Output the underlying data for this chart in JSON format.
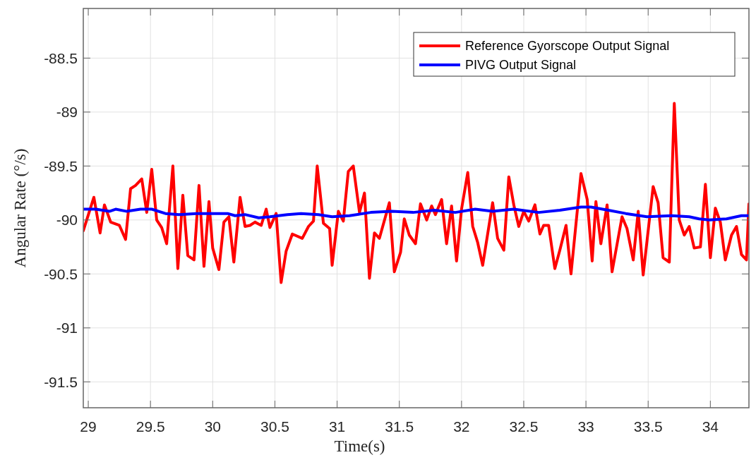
{
  "chart_data": {
    "type": "line",
    "xlabel": "Time(s)",
    "ylabel": "Angular Rate (°/s)",
    "xlim": [
      28.96,
      34.31
    ],
    "xticks": [
      29,
      29.5,
      30,
      30.5,
      31,
      31.5,
      32,
      32.5,
      33,
      33.5,
      34
    ],
    "ylim": [
      -91.74,
      -88.04
    ],
    "yticks": [
      -91.5,
      -91,
      -90.5,
      -90,
      -89.5,
      -89,
      -88.5
    ],
    "grid": true,
    "legend": "top right",
    "line_style": "solid",
    "marker": "none",
    "series": [
      {
        "name": "Reference Gyorscope Output Signal",
        "color": "#ff0000",
        "x": [
          28.96,
          29.045,
          29.095,
          29.13,
          29.18,
          29.25,
          29.3,
          29.34,
          29.38,
          29.43,
          29.47,
          29.51,
          29.55,
          29.59,
          29.63,
          29.68,
          29.72,
          29.76,
          29.8,
          29.85,
          29.89,
          29.93,
          29.97,
          30.0,
          30.05,
          30.09,
          30.13,
          30.17,
          30.22,
          30.26,
          30.3,
          30.34,
          30.39,
          30.43,
          30.46,
          30.51,
          30.55,
          30.59,
          30.64,
          30.72,
          30.77,
          30.81,
          30.84,
          30.89,
          30.94,
          30.96,
          31.01,
          31.05,
          31.09,
          31.13,
          31.18,
          31.22,
          31.26,
          31.3,
          31.34,
          31.42,
          31.46,
          31.51,
          31.54,
          31.58,
          31.63,
          31.67,
          31.72,
          31.76,
          31.79,
          31.84,
          31.88,
          31.92,
          31.96,
          32.0,
          32.05,
          32.09,
          32.13,
          32.17,
          32.25,
          32.29,
          32.34,
          32.38,
          32.42,
          32.46,
          32.5,
          32.54,
          32.59,
          32.63,
          32.66,
          32.7,
          32.75,
          32.79,
          32.84,
          32.88,
          32.96,
          33.01,
          33.05,
          33.08,
          33.12,
          33.17,
          33.21,
          33.29,
          33.33,
          33.38,
          33.42,
          33.46,
          33.54,
          33.58,
          33.62,
          33.67,
          33.71,
          33.75,
          33.79,
          33.83,
          33.87,
          33.92,
          33.96,
          34.0,
          34.04,
          34.08,
          34.12,
          34.17,
          34.21,
          34.25,
          34.29,
          34.31
        ],
        "values": [
          -90.1,
          -89.79,
          -90.12,
          -89.86,
          -90.02,
          -90.05,
          -90.18,
          -89.71,
          -89.68,
          -89.62,
          -89.93,
          -89.53,
          -90.0,
          -90.07,
          -90.22,
          -89.5,
          -90.45,
          -89.77,
          -90.33,
          -90.37,
          -89.68,
          -90.43,
          -89.83,
          -90.26,
          -90.46,
          -90.02,
          -89.97,
          -90.39,
          -89.79,
          -90.06,
          -90.05,
          -90.02,
          -90.05,
          -89.9,
          -90.07,
          -89.94,
          -90.58,
          -90.29,
          -90.13,
          -90.17,
          -90.06,
          -90.01,
          -89.5,
          -90.03,
          -90.08,
          -90.42,
          -89.92,
          -90.01,
          -89.55,
          -89.5,
          -89.93,
          -89.75,
          -90.54,
          -90.12,
          -90.17,
          -89.84,
          -90.48,
          -90.3,
          -89.99,
          -90.14,
          -90.22,
          -89.85,
          -90.0,
          -89.87,
          -89.95,
          -89.81,
          -90.22,
          -89.87,
          -90.38,
          -89.9,
          -89.56,
          -90.06,
          -90.21,
          -90.42,
          -89.84,
          -90.17,
          -90.28,
          -89.6,
          -89.86,
          -90.06,
          -89.92,
          -90.01,
          -89.86,
          -90.13,
          -90.05,
          -90.05,
          -90.45,
          -90.28,
          -90.05,
          -90.5,
          -89.57,
          -89.81,
          -90.38,
          -89.83,
          -90.22,
          -89.86,
          -90.48,
          -89.97,
          -90.08,
          -90.37,
          -89.92,
          -90.51,
          -89.69,
          -89.84,
          -90.35,
          -90.39,
          -88.92,
          -90.0,
          -90.14,
          -90.06,
          -90.26,
          -90.25,
          -89.67,
          -90.35,
          -89.89,
          -90.02,
          -90.37,
          -90.14,
          -90.06,
          -90.32,
          -90.37,
          -89.85
        ]
      },
      {
        "name": "PIVG Output Signal",
        "color": "#0000ff",
        "x": [
          28.96,
          29.06,
          29.17,
          29.22,
          29.31,
          29.42,
          29.51,
          29.62,
          29.73,
          29.87,
          29.98,
          30.12,
          30.18,
          30.26,
          30.37,
          30.46,
          30.6,
          30.71,
          30.85,
          30.96,
          31.1,
          31.27,
          31.44,
          31.61,
          31.78,
          31.95,
          32.11,
          32.25,
          32.42,
          32.62,
          32.79,
          32.96,
          33.04,
          33.18,
          33.32,
          33.49,
          33.69,
          33.83,
          33.91,
          33.99,
          34.13,
          34.25,
          34.31
        ],
        "values": [
          -89.9,
          -89.9,
          -89.92,
          -89.9,
          -89.92,
          -89.9,
          -89.9,
          -89.94,
          -89.95,
          -89.94,
          -89.94,
          -89.94,
          -89.96,
          -89.95,
          -89.98,
          -89.97,
          -89.95,
          -89.94,
          -89.95,
          -89.97,
          -89.96,
          -89.93,
          -89.92,
          -89.93,
          -89.91,
          -89.93,
          -89.9,
          -89.92,
          -89.9,
          -89.93,
          -89.91,
          -89.88,
          -89.88,
          -89.91,
          -89.94,
          -89.97,
          -89.96,
          -89.97,
          -89.99,
          -90.0,
          -89.99,
          -89.96,
          -89.96
        ]
      }
    ]
  }
}
